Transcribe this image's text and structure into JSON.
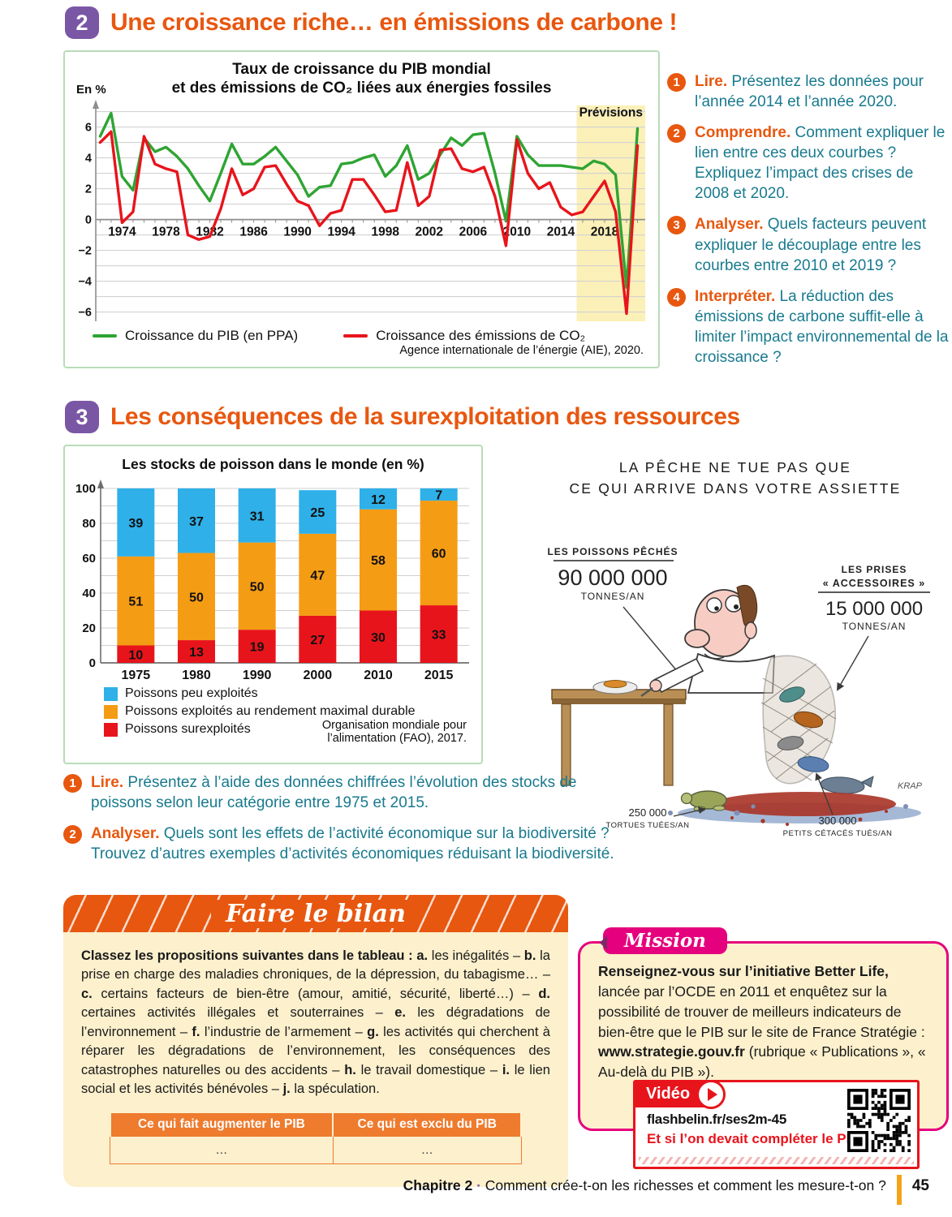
{
  "colors": {
    "orange": "#e8570f",
    "purple": "#7a57a5",
    "teal": "#187a8e",
    "pink": "#e5007d",
    "red": "#e8141c",
    "cream": "#fcf0cd",
    "green-border": "#b9dcb9",
    "table-orange": "#ee7b2e",
    "footer-bar": "#f5a21b"
  },
  "doc2": {
    "number": "2",
    "title": "Une croissance riche… en émissions de carbone !",
    "chart_title_line1": "Taux de croissance du PIB mondial",
    "chart_title_line2": "et des émissions de CO₂ liées aux énergies fossiles",
    "questions": [
      {
        "num": "1",
        "verb": "Lire.",
        "text": "Présentez les données pour l’année 2014 et l’année 2020."
      },
      {
        "num": "2",
        "verb": "Comprendre.",
        "text": "Comment expliquer le lien entre ces deux courbes ? Expliquez l’impact des crises de 2008 et 2020."
      },
      {
        "num": "3",
        "verb": "Analyser.",
        "text": "Quels facteurs peuvent expliquer le découplage entre les courbes entre 2010 et 2019 ?"
      },
      {
        "num": "4",
        "verb": "Interpréter.",
        "text": "La réduction des émissions de carbone suffit-elle à limiter l’impact environnemental de la croissance ?"
      }
    ]
  },
  "doc3": {
    "number": "3",
    "title": "Les conséquences de la surexploitation des ressources",
    "questions": [
      {
        "num": "1",
        "verb": "Lire.",
        "text": "Présentez à l’aide des données chiffrées l’évolution des stocks de poissons selon leur catégorie entre 1975 et 2015."
      },
      {
        "num": "2",
        "verb": "Analyser.",
        "text": "Quels sont les effets de l’activité économique sur la biodiversité ? Trouvez d’autres exemples d’activités économiques réduisant la biodiversité."
      }
    ]
  },
  "cartoon": {
    "title_line1": "LA PÊCHE NE TUE PAS QUE",
    "title_line2": "CE QUI ARRIVE DANS VOTRE ASSIETTE",
    "left_label": "LES POISSONS PÊCHÉS",
    "left_value": "90 000 000",
    "left_unit": "TONNES/AN",
    "right_label1": "LES PRISES",
    "right_label2": "« ACCESSOIRES »",
    "right_value": "15 000 000",
    "right_unit": "TONNES/AN",
    "bottom_left_value": "250 000",
    "bottom_left_label": "TORTUES TUÉES/AN",
    "bottom_right_value": "300 000",
    "bottom_right_label": "PETITS CÉTACÉS TUÉS/AN",
    "signature": "KRAP"
  },
  "bilan": {
    "banner": "Faire le bilan",
    "intro_bold": "Classez les propositions suivantes dans le tableau : ",
    "items": [
      {
        "key": "a.",
        "text": "les inégalités"
      },
      {
        "key": "b.",
        "text": "la prise en charge des maladies chroniques, de la dépression, du tabagisme…"
      },
      {
        "key": "c.",
        "text": "certains facteurs de bien-être (amour, amitié, sécurité, liberté…)"
      },
      {
        "key": "d.",
        "text": "certaines activités illégales et souterraines"
      },
      {
        "key": "e.",
        "text": "les dégradations de l’environnement"
      },
      {
        "key": "f.",
        "text": "l’industrie de l’armement"
      },
      {
        "key": "g.",
        "text": "les activités qui cherchent à réparer les dégradations de l’environnement, les conséquences des catastrophes naturelles ou des accidents"
      },
      {
        "key": "h.",
        "text": "le travail domestique"
      },
      {
        "key": "i.",
        "text": "le lien social et les activités bénévoles"
      },
      {
        "key": "j.",
        "text": "la spéculation."
      }
    ],
    "table": {
      "headers": [
        "Ce qui fait augmenter le PIB",
        "Ce qui est exclu du PIB"
      ],
      "cells": [
        "…",
        "…"
      ]
    }
  },
  "mission": {
    "tab": "Mission",
    "text_bold1": "Renseignez-vous sur l’initiative Better Life,",
    "text_1": " lancée par l’OCDE en 2011 et enquêtez sur la possibilité de trouver de meilleurs indicateurs de bien-être que le PIB sur le site de France Stratégie : ",
    "text_bold2": "www.strategie.gouv.fr",
    "text_2": " (rubrique « Publications », « Au-delà du PIB »)."
  },
  "video": {
    "label": "Vidéo",
    "url": "flashbelin.fr/ses2m-45",
    "caption": "Et si l’on devait compléter le PIB ?"
  },
  "footer": {
    "chapter_label": "Chapitre 2",
    "separator": "·",
    "chapter_title": "Comment crée-t-on les richesses et comment les mesure-t-on ?",
    "page_number": "45"
  },
  "chart_data": [
    {
      "type": "line",
      "title": "Taux de croissance du PIB mondial et des émissions de CO₂ liées aux énergies fossiles",
      "ylabel": "En %",
      "x_start": 1972,
      "x_end": 2021,
      "xtick_labels": [
        1974,
        1978,
        1982,
        1986,
        1990,
        1994,
        1998,
        2002,
        2006,
        2010,
        2014,
        2018
      ],
      "ylim": [
        -6,
        7
      ],
      "ytick_step": 2,
      "grid_step": 1,
      "forecast_band": {
        "from": 2015.45,
        "label": "Prévisions",
        "color": "#fbf0b8"
      },
      "series": [
        {
          "name": "Croissance du PIB (en PPA)",
          "color": "#2fa433",
          "values": [
            5.4,
            6.9,
            2.8,
            1.9,
            5.3,
            4.4,
            4.7,
            4.1,
            3.3,
            2.2,
            1.2,
            3.0,
            4.9,
            3.6,
            3.6,
            4.1,
            4.7,
            3.8,
            2.9,
            1.5,
            2.1,
            2.2,
            3.6,
            3.7,
            4.0,
            4.2,
            2.8,
            3.5,
            4.8,
            2.6,
            3.0,
            4.2,
            5.3,
            4.8,
            5.5,
            5.6,
            3.0,
            -0.1,
            5.4,
            4.2,
            3.5,
            3.5,
            3.5,
            3.4,
            3.3,
            3.8,
            3.6,
            2.9,
            -4.4,
            5.9
          ]
        },
        {
          "name": "Croissance des émissions de CO₂",
          "color": "#e8141c",
          "values": [
            5.0,
            5.7,
            -0.2,
            0.5,
            5.4,
            3.6,
            3.3,
            3.1,
            -1.0,
            -1.3,
            -1.1,
            0.7,
            3.3,
            1.6,
            2.0,
            3.4,
            3.5,
            2.3,
            1.2,
            0.9,
            -0.4,
            0.4,
            0.6,
            2.6,
            2.6,
            1.6,
            0.5,
            0.6,
            3.7,
            0.9,
            1.5,
            4.5,
            4.6,
            3.3,
            3.1,
            3.4,
            1.5,
            -1.7,
            5.2,
            3.0,
            2.0,
            2.4,
            0.8,
            0.3,
            0.5,
            1.5,
            2.5,
            0.5,
            -6.1,
            4.8
          ]
        }
      ],
      "source": "Agence internationale de l’énergie (AIE), 2020."
    },
    {
      "type": "stacked_bar",
      "title": "Les stocks de poisson dans le monde (en %)",
      "categories": [
        "1975",
        "1980",
        "1990",
        "2000",
        "2010",
        "2015"
      ],
      "ylim": [
        0,
        100
      ],
      "ytick_step": 20,
      "grid_step": 10,
      "series": [
        {
          "name": "Poissons surexploités",
          "color": "#e8141c",
          "values": [
            10,
            13,
            19,
            27,
            30,
            33
          ]
        },
        {
          "name": "Poissons exploités au rendement maximal durable",
          "color": "#f59c15",
          "values": [
            51,
            50,
            50,
            47,
            58,
            60
          ]
        },
        {
          "name": "Poissons peu exploités",
          "color": "#2fb0e8",
          "values": [
            39,
            37,
            31,
            25,
            12,
            7
          ]
        }
      ],
      "source": "Organisation mondiale pour l’alimentation (FAO), 2017."
    }
  ]
}
